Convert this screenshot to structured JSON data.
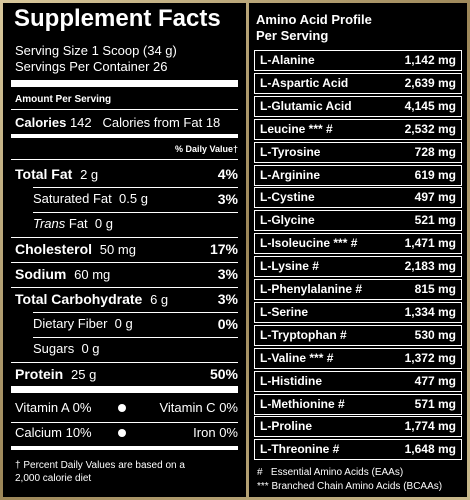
{
  "facts": {
    "title": "Supplement Facts",
    "serving_size": "Serving Size 1 Scoop (34 g)",
    "servings": "Servings Per Container 26",
    "amount_per_serving": "Amount Per Serving",
    "calories": {
      "label": "Calories",
      "value": "142",
      "from_fat_label": "Calories from Fat",
      "from_fat": "18"
    },
    "dv_header": "% Daily Value†",
    "nutrients": [
      {
        "name": "Total Fat",
        "amount": "2 g",
        "dv": "4%"
      },
      {
        "name": "Saturated Fat",
        "amount": "0.5 g",
        "dv": "3%"
      },
      {
        "name_italic": "Trans",
        "name": "Fat",
        "amount": "0 g"
      },
      {
        "name": "Cholesterol",
        "amount": "50 mg",
        "dv": "17%"
      },
      {
        "name": "Sodium",
        "amount": "60 mg",
        "dv": "3%"
      },
      {
        "name": "Total Carbohydrate",
        "amount": "6 g",
        "dv": "3%"
      },
      {
        "name": "Dietary Fiber",
        "amount": "0 g",
        "dv": "0%"
      },
      {
        "name": "Sugars",
        "amount": "0 g"
      },
      {
        "name": "Protein",
        "amount": "25 g",
        "dv": "50%"
      }
    ],
    "vitamins": [
      {
        "name": "Vitamin A",
        "value": "0%"
      },
      {
        "name": "Vitamin C",
        "value": "0%"
      },
      {
        "name": "Calcium",
        "value": "10%"
      },
      {
        "name": "Iron",
        "value": "0%"
      }
    ],
    "footnote": "† Percent Daily Values are based on a 2,000 calorie diet"
  },
  "amino": {
    "title": [
      "Amino Acid Profile",
      "Per Serving"
    ],
    "rows": [
      {
        "name": "L-Alanine",
        "amount": "1,142 mg"
      },
      {
        "name": "L-Aspartic Acid",
        "amount": "2,639 mg"
      },
      {
        "name": "L-Glutamic Acid",
        "amount": "4,145 mg"
      },
      {
        "name": "Leucine *** #",
        "amount": "2,532 mg"
      },
      {
        "name": "L-Tyrosine",
        "amount": "728 mg"
      },
      {
        "name": "L-Arginine",
        "amount": "619 mg"
      },
      {
        "name": "L-Cystine",
        "amount": "497 mg"
      },
      {
        "name": "L-Glycine",
        "amount": "521 mg"
      },
      {
        "name": "L-Isoleucine *** #",
        "amount": "1,471 mg"
      },
      {
        "name": "L-Lysine #",
        "amount": "2,183 mg"
      },
      {
        "name": "L-Phenylalanine #",
        "amount": "815 mg"
      },
      {
        "name": "L-Serine",
        "amount": "1,334 mg"
      },
      {
        "name": "L-Tryptophan #",
        "amount": "530 mg"
      },
      {
        "name": "L-Valine *** #",
        "amount": "1,372 mg"
      },
      {
        "name": "L-Histidine",
        "amount": "477 mg"
      },
      {
        "name": "L-Methionine #",
        "amount": "571 mg"
      },
      {
        "name": "L-Proline",
        "amount": "1,774 mg"
      },
      {
        "name": "L-Threonine #",
        "amount": "1,648 mg"
      }
    ],
    "legend": [
      "#   Essential Amino Acids (EAAs)",
      "*** Branched Chain Amino Acids (BCAAs)"
    ]
  }
}
